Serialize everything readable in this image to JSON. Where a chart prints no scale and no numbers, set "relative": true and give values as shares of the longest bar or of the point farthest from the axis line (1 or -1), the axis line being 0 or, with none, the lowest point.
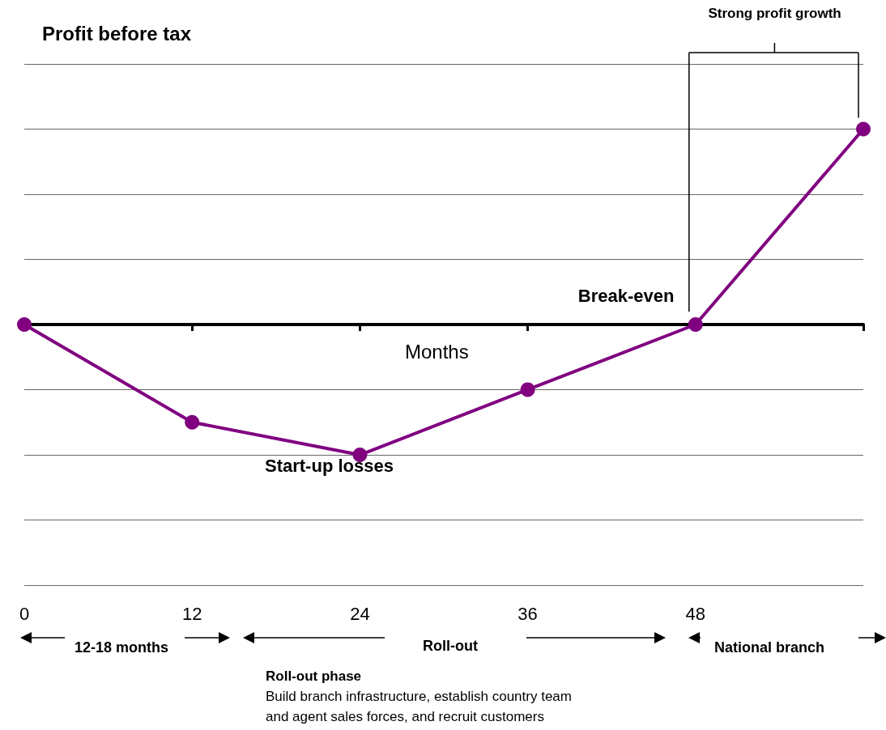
{
  "chart_data": {
    "type": "line",
    "title": "Profit before tax",
    "xlabel": "Months",
    "x": [
      0,
      12,
      24,
      36,
      48,
      60
    ],
    "values": [
      0,
      -0.5,
      -0.667,
      -0.333,
      0,
      1
    ],
    "relative": true,
    "color": "#800080",
    "marker": "circle",
    "line_style": "solid",
    "grid": "y",
    "xlim": [
      0,
      60
    ],
    "xticks": [
      0,
      12,
      24,
      36,
      48,
      {
        "value": 60,
        "label": null
      }
    ],
    "annotations": [
      {
        "text": "Break-even",
        "x": 48,
        "y": 0
      },
      "Start-up losses",
      "Strong profit growth",
      "12-18 months",
      "Roll-out",
      "National branch",
      "Roll-out phase",
      "Build branch infrastructure, establish country team",
      "and agent sales forces, and recruit customers"
    ]
  }
}
